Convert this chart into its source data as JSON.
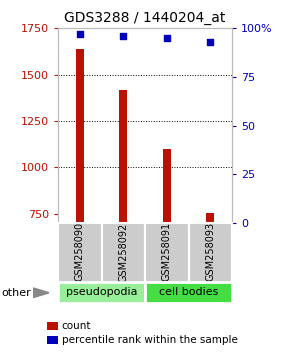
{
  "title": "GDS3288 / 1440204_at",
  "samples": [
    "GSM258090",
    "GSM258092",
    "GSM258091",
    "GSM258093"
  ],
  "counts": [
    1640,
    1420,
    1100,
    755
  ],
  "percentiles": [
    97,
    96,
    95,
    93
  ],
  "group_labels": [
    "pseudopodia",
    "cell bodies"
  ],
  "group_colors": [
    "#99ee99",
    "#44dd44"
  ],
  "ylim_left": [
    700,
    1750
  ],
  "ylim_right": [
    0,
    100
  ],
  "yticks_left": [
    750,
    1000,
    1250,
    1500,
    1750
  ],
  "yticks_right": [
    0,
    25,
    50,
    75,
    100
  ],
  "grid_lines": [
    1000,
    1250,
    1500
  ],
  "bar_color": "#bb1100",
  "dot_color": "#0000bb",
  "bar_width": 0.18,
  "dot_size": 16,
  "other_label": "other",
  "legend_count_label": "count",
  "legend_pct_label": "percentile rank within the sample",
  "title_fontsize": 10,
  "tick_fontsize": 8,
  "sample_fontsize": 7,
  "group_fontsize": 8,
  "legend_fontsize": 7.5
}
